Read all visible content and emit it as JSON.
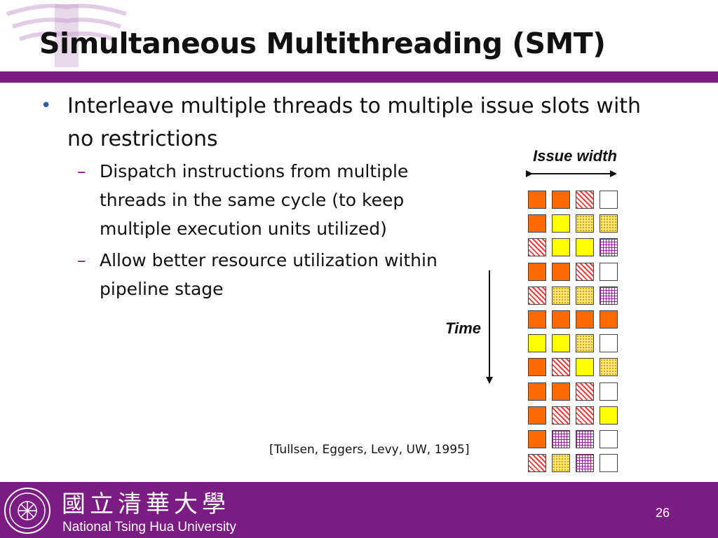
{
  "slide": {
    "title": "Simultaneous Multithreading (SMT)",
    "bullet": "Interleave multiple threads to multiple issue slots with no restrictions",
    "sub_bullets": [
      "Dispatch instructions from multiple threads in the same cycle (to keep multiple execution units utilized)",
      "Allow better resource utilization within pipeline stage"
    ],
    "citation": "[Tullsen, Eggers, Levy, UW, 1995]"
  },
  "diagram": {
    "issue_width_label": "Issue width",
    "time_label": "Time",
    "legend_patterns": [
      "orange",
      "yellow",
      "red-hatch",
      "dotted",
      "purple-grid",
      "empty"
    ],
    "grid": [
      [
        "orange",
        "orange",
        "red-hatch",
        "empty"
      ],
      [
        "orange",
        "yellow",
        "dotted",
        "dotted"
      ],
      [
        "red-hatch",
        "yellow",
        "yellow",
        "purple-grid"
      ],
      [
        "orange",
        "orange",
        "red-hatch",
        "empty"
      ],
      [
        "red-hatch",
        "dotted",
        "dotted",
        "purple-grid"
      ],
      [
        "orange",
        "orange",
        "orange",
        "orange"
      ],
      [
        "yellow",
        "yellow",
        "dotted",
        "empty"
      ],
      [
        "orange",
        "red-hatch",
        "yellow",
        "dotted"
      ],
      [
        "orange",
        "orange",
        "red-hatch",
        "empty"
      ],
      [
        "orange",
        "red-hatch",
        "red-hatch",
        "yellow"
      ],
      [
        "orange",
        "purple-grid",
        "purple-grid",
        "empty"
      ],
      [
        "red-hatch",
        "dotted",
        "purple-grid",
        "empty"
      ]
    ]
  },
  "footer": {
    "university_cn": "國立清華大學",
    "university_en": "National Tsing Hua University",
    "page_number": "26"
  },
  "colors": {
    "accent_purple": "#7b1c83",
    "bullet_blue": "#2a5caa",
    "orange": "#ff6a00",
    "yellow": "#ffff00",
    "red_hatch": "#ff3a3a",
    "purple_grid": "#8a2a8a"
  }
}
